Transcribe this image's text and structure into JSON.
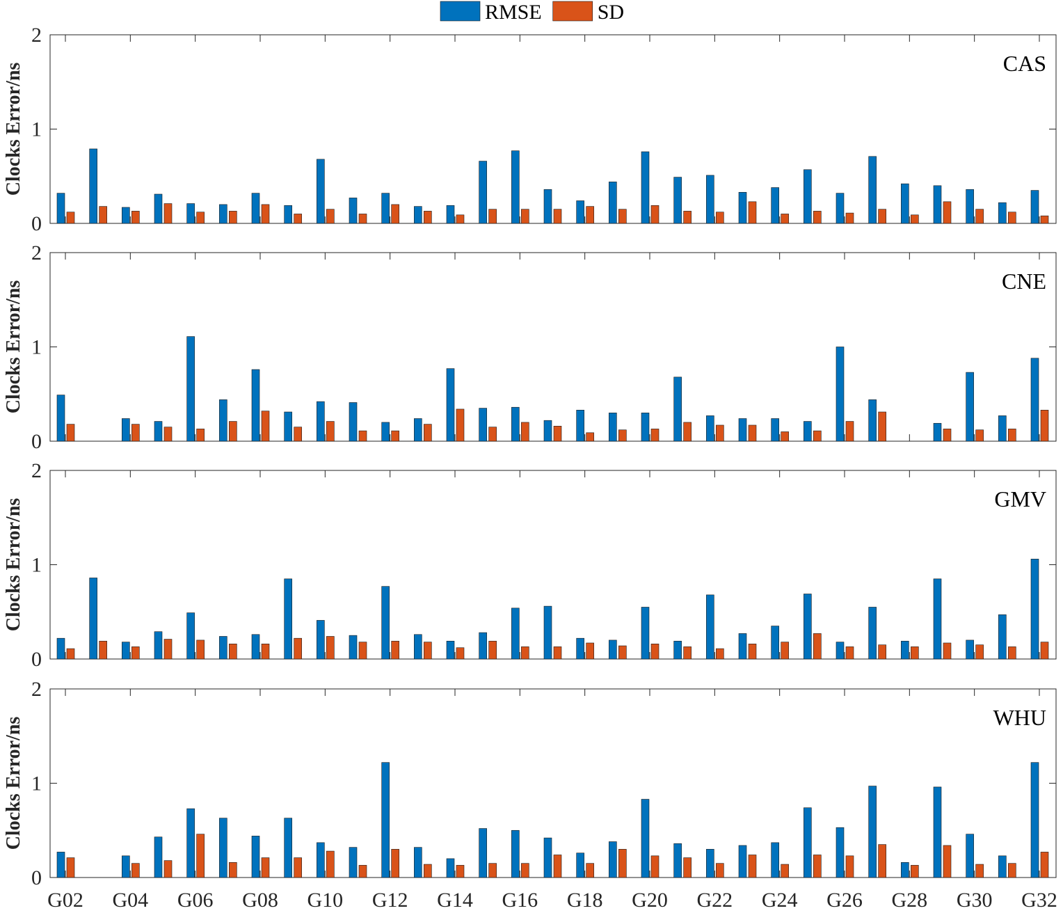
{
  "chart_data": [
    {
      "type": "bar",
      "title": "CAS",
      "ylabel": "Clocks Error/ns",
      "categories": [
        "G02",
        null,
        "G04",
        null,
        "G06",
        null,
        "G08",
        null,
        "G10",
        null,
        "G12",
        null,
        "G14",
        null,
        "G16",
        null,
        "G18",
        null,
        "G20",
        null,
        "G22",
        null,
        "G24",
        null,
        "G26",
        null,
        "G28",
        null,
        "G30",
        null,
        "G32"
      ],
      "series": [
        {
          "name": "RMSE",
          "color": "#0072BD",
          "values": [
            0.32,
            0.79,
            0.17,
            0.31,
            0.21,
            0.2,
            0.32,
            0.19,
            0.68,
            0.27,
            0.32,
            0.18,
            0.19,
            0.66,
            0.77,
            0.36,
            0.24,
            0.44,
            0.76,
            0.49,
            0.51,
            0.33,
            0.38,
            0.57,
            0.32,
            0.71,
            0.42,
            0.4,
            0.36,
            0.22,
            0.35
          ]
        },
        {
          "name": "SD",
          "color": "#D95319",
          "values": [
            0.12,
            0.18,
            0.13,
            0.21,
            0.12,
            0.13,
            0.2,
            0.1,
            0.15,
            0.1,
            0.2,
            0.13,
            0.09,
            0.15,
            0.15,
            0.15,
            0.18,
            0.15,
            0.19,
            0.13,
            0.12,
            0.23,
            0.1,
            0.13,
            0.11,
            0.15,
            0.09,
            0.23,
            0.15,
            0.12,
            0.08
          ]
        }
      ],
      "ylim": [
        0,
        2
      ],
      "yticks": [
        0,
        1,
        2
      ]
    },
    {
      "type": "bar",
      "title": "CNE",
      "ylabel": "Clocks Error/ns",
      "categories": [
        "G02",
        null,
        "G04",
        null,
        "G06",
        null,
        "G08",
        null,
        "G10",
        null,
        "G12",
        null,
        "G14",
        null,
        "G16",
        null,
        "G18",
        null,
        "G20",
        null,
        "G22",
        null,
        "G24",
        null,
        "G26",
        null,
        "G28",
        null,
        "G30",
        null,
        "G32"
      ],
      "series": [
        {
          "name": "RMSE",
          "color": "#0072BD",
          "values": [
            0.49,
            null,
            0.24,
            0.21,
            1.11,
            0.44,
            0.76,
            0.31,
            0.42,
            0.41,
            0.2,
            0.24,
            0.77,
            0.35,
            0.36,
            0.22,
            0.33,
            0.3,
            0.3,
            0.68,
            0.27,
            0.24,
            0.24,
            0.21,
            1.0,
            0.44,
            null,
            0.19,
            0.73,
            0.27,
            0.88
          ]
        },
        {
          "name": "SD",
          "color": "#D95319",
          "values": [
            0.18,
            null,
            0.18,
            0.15,
            0.13,
            0.21,
            0.32,
            0.15,
            0.21,
            0.11,
            0.11,
            0.18,
            0.34,
            0.15,
            0.2,
            0.16,
            0.09,
            0.12,
            0.13,
            0.2,
            0.17,
            0.17,
            0.1,
            0.11,
            0.21,
            0.31,
            null,
            0.13,
            0.12,
            0.13,
            0.33
          ]
        }
      ],
      "ylim": [
        0,
        2
      ],
      "yticks": [
        0,
        1,
        2
      ]
    },
    {
      "type": "bar",
      "title": "GMV",
      "ylabel": "Clocks Error/ns",
      "categories": [
        "G02",
        null,
        "G04",
        null,
        "G06",
        null,
        "G08",
        null,
        "G10",
        null,
        "G12",
        null,
        "G14",
        null,
        "G16",
        null,
        "G18",
        null,
        "G20",
        null,
        "G22",
        null,
        "G24",
        null,
        "G26",
        null,
        "G28",
        null,
        "G30",
        null,
        "G32"
      ],
      "series": [
        {
          "name": "RMSE",
          "color": "#0072BD",
          "values": [
            0.22,
            0.86,
            0.18,
            0.29,
            0.49,
            0.24,
            0.26,
            0.85,
            0.41,
            0.25,
            0.77,
            0.26,
            0.19,
            0.28,
            0.54,
            0.56,
            0.22,
            0.2,
            0.55,
            0.19,
            0.68,
            0.27,
            0.35,
            0.69,
            0.18,
            0.55,
            0.19,
            0.85,
            0.2,
            0.47,
            1.06
          ]
        },
        {
          "name": "SD",
          "color": "#D95319",
          "values": [
            0.11,
            0.19,
            0.13,
            0.21,
            0.2,
            0.16,
            0.16,
            0.22,
            0.24,
            0.18,
            0.19,
            0.18,
            0.12,
            0.19,
            0.13,
            0.13,
            0.17,
            0.14,
            0.16,
            0.13,
            0.11,
            0.16,
            0.18,
            0.27,
            0.13,
            0.15,
            0.13,
            0.17,
            0.15,
            0.13,
            0.18
          ]
        }
      ],
      "ylim": [
        0,
        2
      ],
      "yticks": [
        0,
        1,
        2
      ]
    },
    {
      "type": "bar",
      "title": "WHU",
      "ylabel": "Clocks Error/ns",
      "categories": [
        "G02",
        null,
        "G04",
        null,
        "G06",
        null,
        "G08",
        null,
        "G10",
        null,
        "G12",
        null,
        "G14",
        null,
        "G16",
        null,
        "G18",
        null,
        "G20",
        null,
        "G22",
        null,
        "G24",
        null,
        "G26",
        null,
        "G28",
        null,
        "G30",
        null,
        "G32"
      ],
      "series": [
        {
          "name": "RMSE",
          "color": "#0072BD",
          "values": [
            0.27,
            null,
            0.23,
            0.43,
            0.73,
            0.63,
            0.44,
            0.63,
            0.37,
            0.32,
            1.22,
            0.32,
            0.2,
            0.52,
            0.5,
            0.42,
            0.26,
            0.38,
            0.83,
            0.36,
            0.3,
            0.34,
            0.37,
            0.74,
            0.53,
            0.97,
            0.16,
            0.96,
            0.46,
            0.23,
            1.22
          ]
        },
        {
          "name": "SD",
          "color": "#D95319",
          "values": [
            0.21,
            null,
            0.15,
            0.18,
            0.46,
            0.16,
            0.21,
            0.21,
            0.28,
            0.13,
            0.3,
            0.14,
            0.13,
            0.15,
            0.15,
            0.24,
            0.15,
            0.3,
            0.23,
            0.21,
            0.15,
            0.24,
            0.14,
            0.24,
            0.23,
            0.35,
            0.13,
            0.34,
            0.14,
            0.15,
            0.27
          ]
        }
      ],
      "ylim": [
        0,
        2
      ],
      "yticks": [
        0,
        1,
        2
      ]
    }
  ]
}
